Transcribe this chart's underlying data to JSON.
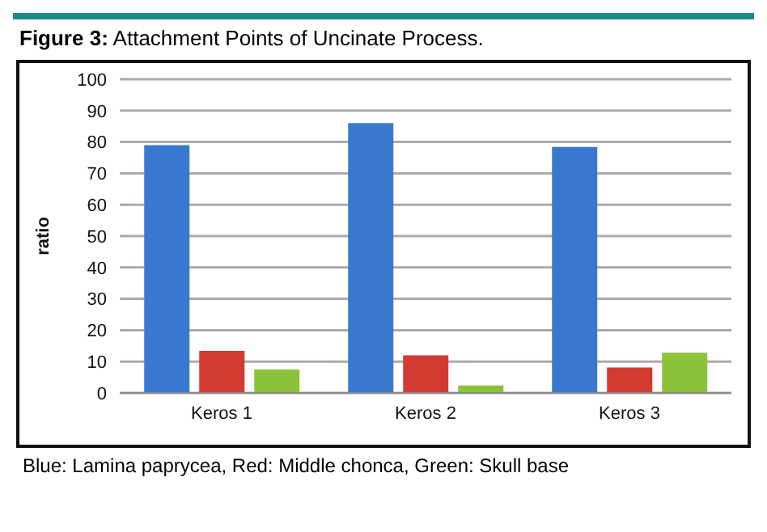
{
  "chart_data": {
    "type": "bar",
    "title": "Figure 3: Attachment Points of Uncinate Process.",
    "ylabel": "ratio",
    "categories": [
      "Keros 1",
      "Keros 2",
      "Keros 3"
    ],
    "series": [
      {
        "color": "#3a78d0",
        "values": [
          79,
          86,
          78.4
        ]
      },
      {
        "color": "#d23a32",
        "values": [
          13.4,
          12,
          8.1
        ]
      },
      {
        "color": "#8cc23a",
        "values": [
          7.5,
          2.4,
          12.8
        ]
      }
    ],
    "ylim": [
      0,
      100
    ],
    "yticks": [
      0,
      10,
      20,
      30,
      40,
      50,
      60,
      70,
      80,
      90,
      100
    ],
    "grid": "y",
    "legend": false,
    "annotations": [
      "Blue: Lamina paprycea, Red: Middle chonca, Green: Skull base"
    ]
  }
}
